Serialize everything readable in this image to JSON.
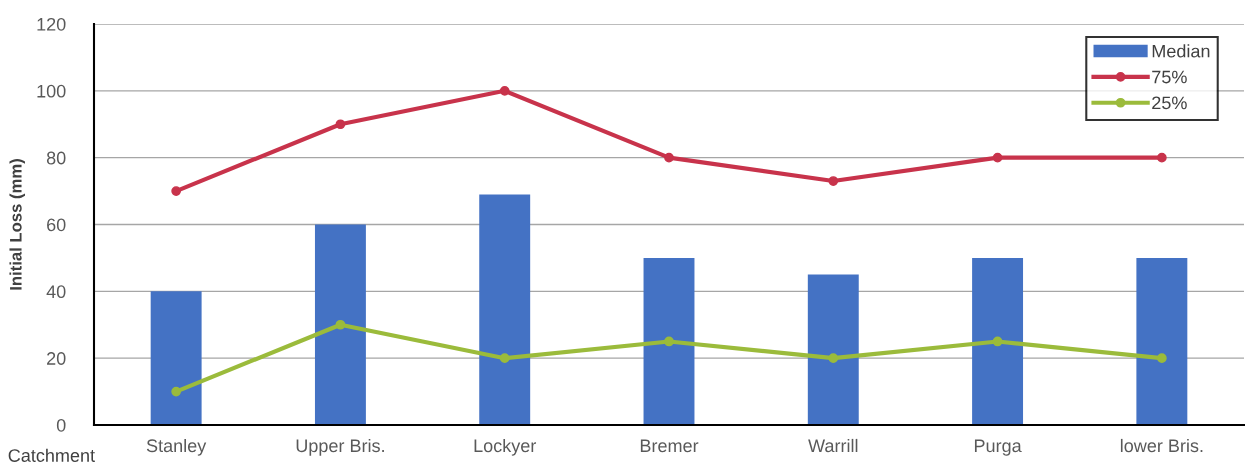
{
  "chart_data": {
    "type": "bar",
    "ylabel": "Initial Loss (mm)",
    "xlabel": "Catchment",
    "categories": [
      "Stanley",
      "Upper Bris.",
      "Lockyer",
      "Bremer",
      "Warrill",
      "Purga",
      "lower Bris."
    ],
    "series": [
      {
        "name": "Median",
        "color": "#4472c4",
        "values": [
          40,
          60,
          69,
          50,
          45,
          50,
          50
        ]
      },
      {
        "name": "75%",
        "type": "line",
        "color": "#c8334b",
        "values": [
          70,
          90,
          100,
          80,
          73,
          80,
          80
        ]
      },
      {
        "name": "25%",
        "type": "line",
        "color": "#9bbb3b",
        "values": [
          10,
          30,
          20,
          25,
          20,
          25,
          20
        ]
      }
    ],
    "ylim": [
      0,
      120
    ],
    "yticks": [
      0,
      20,
      40,
      60,
      80,
      100,
      120
    ],
    "grid": "y",
    "legend": "top right",
    "marker": "circle",
    "line_style": "solid"
  }
}
